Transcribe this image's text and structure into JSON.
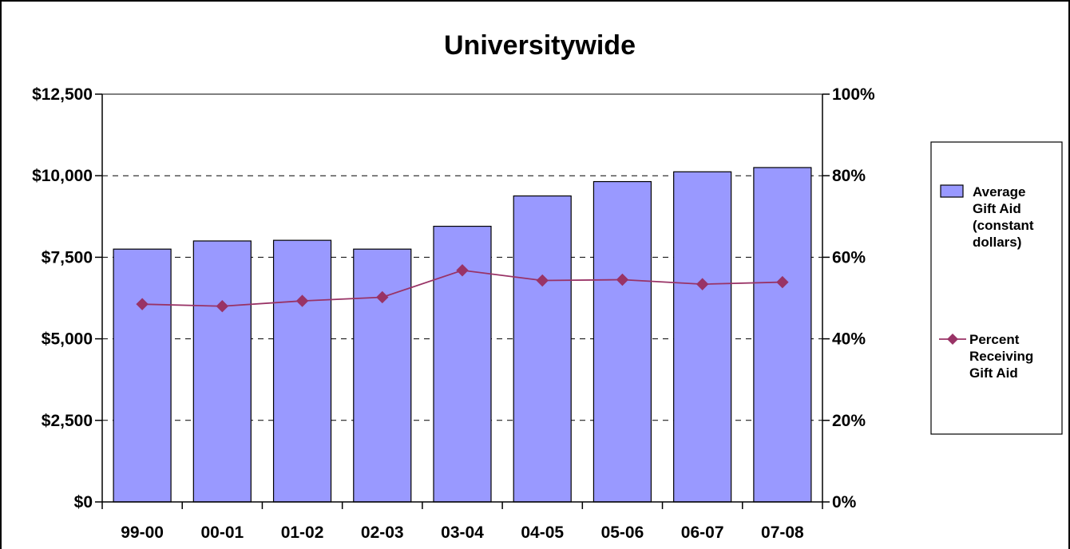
{
  "chart_data": {
    "type": "bar",
    "title": "Universitywide",
    "categories": [
      "99-00",
      "00-01",
      "01-02",
      "02-03",
      "03-04",
      "04-05",
      "05-06",
      "06-07",
      "07-08"
    ],
    "series": [
      {
        "name": "Average Gift Aid (constant dollars)",
        "name_lines": [
          "Average",
          "Gift Aid",
          "(constant",
          "dollars)"
        ],
        "type": "bar",
        "axis": "left",
        "color": "#9999ff",
        "values": [
          7750,
          8000,
          8020,
          7750,
          8450,
          9380,
          9820,
          10120,
          10250
        ]
      },
      {
        "name": "Percent Receiving Gift Aid",
        "name_lines": [
          "Percent",
          "Receiving",
          "Gift Aid"
        ],
        "type": "line",
        "axis": "right",
        "color": "#993366",
        "values": [
          48.5,
          48.0,
          49.3,
          50.2,
          56.8,
          54.3,
          54.5,
          53.4,
          53.9
        ]
      }
    ],
    "y_left": {
      "ylim": [
        0,
        12500
      ],
      "ticks": [
        0,
        2500,
        5000,
        7500,
        10000,
        12500
      ],
      "tick_labels": [
        "$0",
        "$2,500",
        "$5,000",
        "$7,500",
        "$10,000",
        "$12,500"
      ]
    },
    "y_right": {
      "ylim": [
        0,
        100
      ],
      "ticks": [
        0,
        20,
        40,
        60,
        80,
        100
      ],
      "tick_labels": [
        "0%",
        "20%",
        "40%",
        "60%",
        "80%",
        "100%"
      ]
    },
    "grid": "horizontal dashed",
    "legend": "right"
  }
}
